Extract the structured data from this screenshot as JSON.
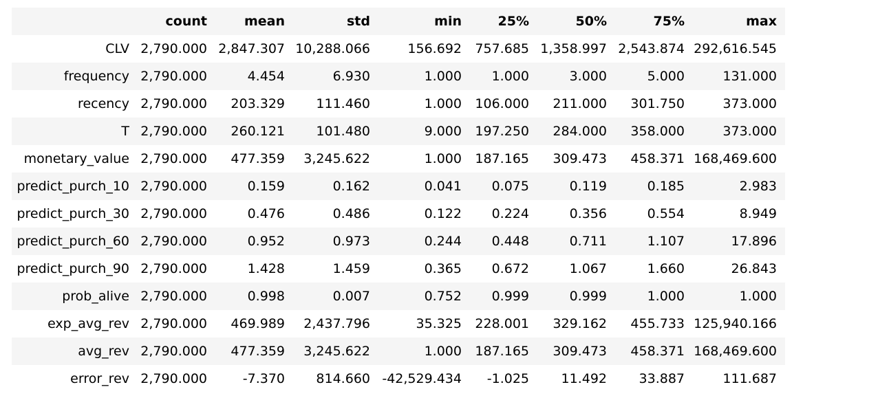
{
  "table": {
    "index_header": "",
    "columns": [
      "count",
      "mean",
      "std",
      "min",
      "25%",
      "50%",
      "75%",
      "max"
    ],
    "rows": [
      {
        "label": "CLV",
        "values": [
          "2,790.000",
          "2,847.307",
          "10,288.066",
          "156.692",
          "757.685",
          "1,358.997",
          "2,543.874",
          "292,616.545"
        ]
      },
      {
        "label": "frequency",
        "values": [
          "2,790.000",
          "4.454",
          "6.930",
          "1.000",
          "1.000",
          "3.000",
          "5.000",
          "131.000"
        ]
      },
      {
        "label": "recency",
        "values": [
          "2,790.000",
          "203.329",
          "111.460",
          "1.000",
          "106.000",
          "211.000",
          "301.750",
          "373.000"
        ]
      },
      {
        "label": "T",
        "values": [
          "2,790.000",
          "260.121",
          "101.480",
          "9.000",
          "197.250",
          "284.000",
          "358.000",
          "373.000"
        ]
      },
      {
        "label": "monetary_value",
        "values": [
          "2,790.000",
          "477.359",
          "3,245.622",
          "1.000",
          "187.165",
          "309.473",
          "458.371",
          "168,469.600"
        ]
      },
      {
        "label": "predict_purch_10",
        "values": [
          "2,790.000",
          "0.159",
          "0.162",
          "0.041",
          "0.075",
          "0.119",
          "0.185",
          "2.983"
        ]
      },
      {
        "label": "predict_purch_30",
        "values": [
          "2,790.000",
          "0.476",
          "0.486",
          "0.122",
          "0.224",
          "0.356",
          "0.554",
          "8.949"
        ]
      },
      {
        "label": "predict_purch_60",
        "values": [
          "2,790.000",
          "0.952",
          "0.973",
          "0.244",
          "0.448",
          "0.711",
          "1.107",
          "17.896"
        ]
      },
      {
        "label": "predict_purch_90",
        "values": [
          "2,790.000",
          "1.428",
          "1.459",
          "0.365",
          "0.672",
          "1.067",
          "1.660",
          "26.843"
        ]
      },
      {
        "label": "prob_alive",
        "values": [
          "2,790.000",
          "0.998",
          "0.007",
          "0.752",
          "0.999",
          "0.999",
          "1.000",
          "1.000"
        ]
      },
      {
        "label": "exp_avg_rev",
        "values": [
          "2,790.000",
          "469.989",
          "2,437.796",
          "35.325",
          "228.001",
          "329.162",
          "455.733",
          "125,940.166"
        ]
      },
      {
        "label": "avg_rev",
        "values": [
          "2,790.000",
          "477.359",
          "3,245.622",
          "1.000",
          "187.165",
          "309.473",
          "458.371",
          "168,469.600"
        ]
      },
      {
        "label": "error_rev",
        "values": [
          "2,790.000",
          "-7.370",
          "814.660",
          "-42,529.434",
          "-1.025",
          "11.492",
          "33.887",
          "111.687"
        ]
      }
    ]
  }
}
